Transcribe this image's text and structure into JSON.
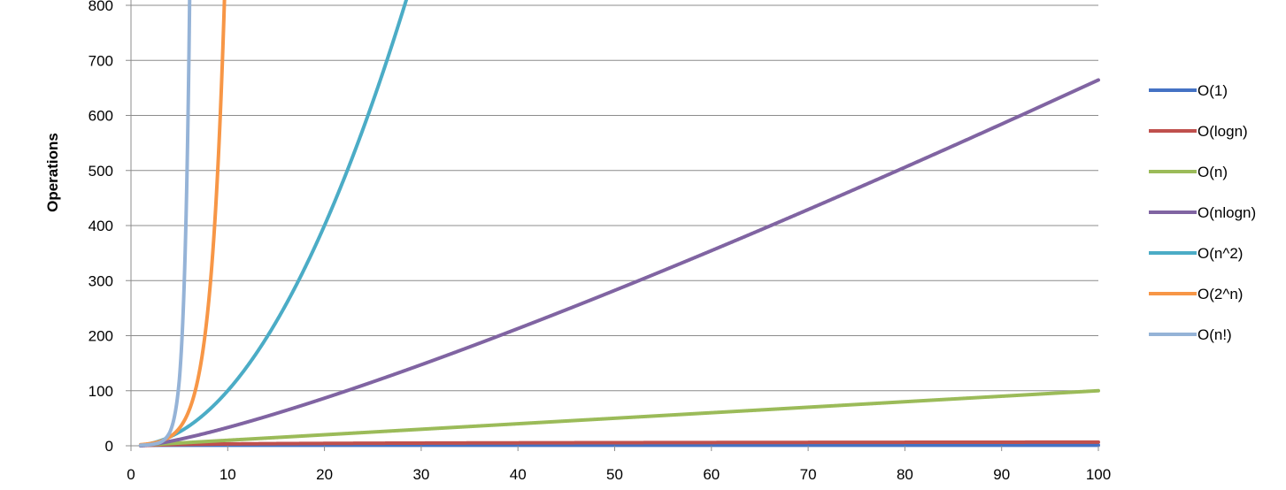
{
  "chart_data": {
    "type": "line",
    "title": "",
    "xlabel": "",
    "ylabel": "Operations",
    "xlim": [
      0,
      100
    ],
    "ylim": [
      0,
      800
    ],
    "x_ticks": [
      "0",
      "10",
      "20",
      "30",
      "40",
      "50",
      "60",
      "70",
      "80",
      "90",
      "100"
    ],
    "y_ticks": [
      "0",
      "100",
      "200",
      "300",
      "400",
      "500",
      "600",
      "700",
      "800"
    ],
    "grid": "horizontal",
    "legend_position": "right",
    "series": [
      {
        "name": "O(1)",
        "color": "#4472C4",
        "formula": "1",
        "points": [
          [
            1,
            1
          ],
          [
            100,
            1
          ]
        ]
      },
      {
        "name": "O(logn)",
        "color": "#C0504D",
        "formula": "log2(n)",
        "points": [
          [
            1,
            0
          ],
          [
            2,
            1
          ],
          [
            4,
            2
          ],
          [
            8,
            3
          ],
          [
            16,
            4
          ],
          [
            32,
            5
          ],
          [
            64,
            6
          ],
          [
            100,
            6.64
          ]
        ]
      },
      {
        "name": "O(n)",
        "color": "#9BBB59",
        "formula": "n",
        "points": [
          [
            1,
            1
          ],
          [
            50,
            50
          ],
          [
            100,
            100
          ]
        ]
      },
      {
        "name": "O(nlogn)",
        "color": "#8064A2",
        "formula": "n*log2(n)",
        "points": [
          [
            1,
            0
          ],
          [
            10,
            33.2
          ],
          [
            20,
            86.4
          ],
          [
            40,
            212.9
          ],
          [
            60,
            354.4
          ],
          [
            80,
            505.8
          ],
          [
            100,
            664.4
          ]
        ]
      },
      {
        "name": "O(n^2)",
        "color": "#4BACC6",
        "formula": "n^2",
        "points": [
          [
            1,
            1
          ],
          [
            10,
            100
          ],
          [
            20,
            400
          ],
          [
            25,
            625
          ],
          [
            28,
            784
          ]
        ]
      },
      {
        "name": "O(2^n)",
        "color": "#F79646",
        "formula": "2^n",
        "points": [
          [
            1,
            2
          ],
          [
            5,
            32
          ],
          [
            8,
            256
          ],
          [
            9,
            512
          ],
          [
            9.6,
            776
          ]
        ]
      },
      {
        "name": "O(n!)",
        "color": "#95B3D7",
        "formula": "n!",
        "points": [
          [
            1,
            1
          ],
          [
            3,
            6
          ],
          [
            4,
            24
          ],
          [
            5,
            120
          ],
          [
            5.5,
            287
          ],
          [
            6,
            720
          ]
        ]
      }
    ]
  }
}
